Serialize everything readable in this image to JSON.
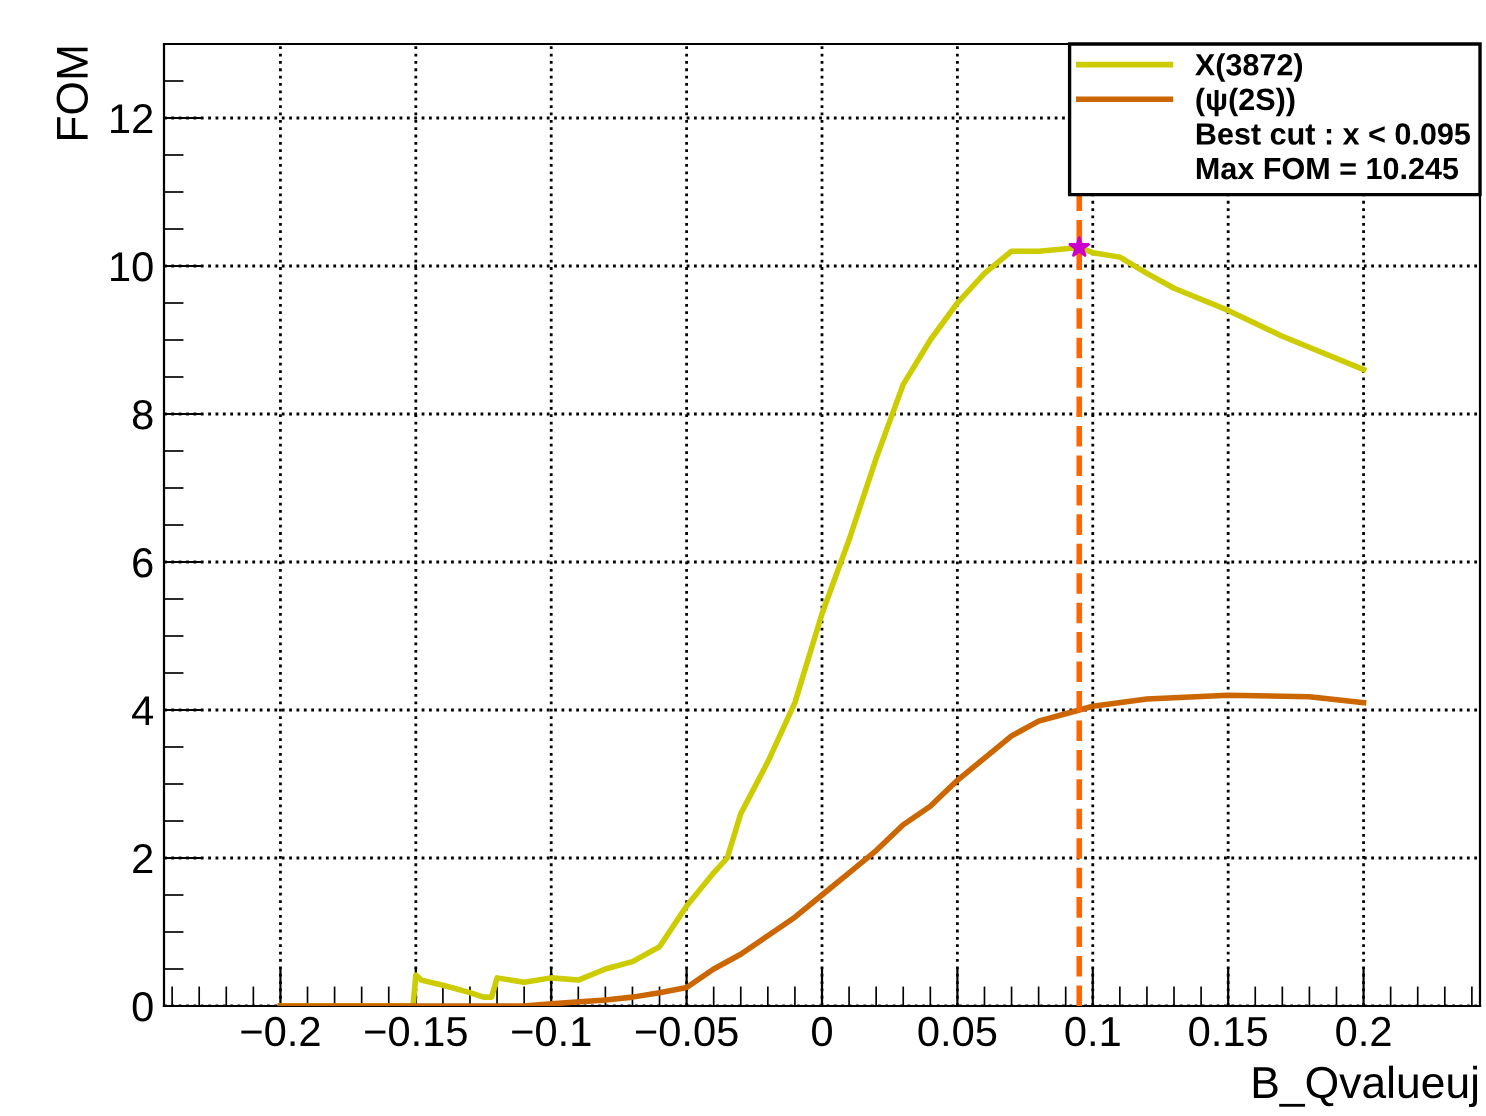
{
  "chart_data": {
    "type": "line",
    "xlabel": "B_Qvalueuj",
    "ylabel": "FOM",
    "xlim": [
      -0.243,
      0.243
    ],
    "ylim": [
      0,
      13
    ],
    "xticks": [
      {
        "value": -0.2,
        "label": "−0.2"
      },
      {
        "value": -0.15,
        "label": "−0.15"
      },
      {
        "value": -0.1,
        "label": "−0.1"
      },
      {
        "value": -0.05,
        "label": "−0.05"
      },
      0,
      0.05,
      0.1,
      0.15,
      0.2
    ],
    "yticks": [
      0,
      2,
      4,
      6,
      8,
      10,
      12
    ],
    "grid": true,
    "legend": "top right",
    "marker": "none",
    "line_style": "solid",
    "series": [
      {
        "name": "X(3872)",
        "color": "#cccc00",
        "x": [
          -0.2,
          -0.151,
          -0.15,
          -0.148,
          -0.14,
          -0.13,
          -0.125,
          -0.122,
          -0.12,
          -0.11,
          -0.1,
          -0.09,
          -0.08,
          -0.07,
          -0.06,
          -0.05,
          -0.04,
          -0.035,
          -0.03,
          -0.02,
          -0.01,
          0,
          0.01,
          0.02,
          0.03,
          0.04,
          0.05,
          0.06,
          0.07,
          0.08,
          0.095,
          0.1,
          0.11,
          0.12,
          0.13,
          0.15,
          0.17,
          0.2
        ],
        "values": [
          0,
          0,
          0.42,
          0.35,
          0.28,
          0.18,
          0.12,
          0.12,
          0.38,
          0.32,
          0.38,
          0.35,
          0.5,
          0.6,
          0.8,
          1.35,
          1.8,
          2.0,
          2.6,
          3.3,
          4.1,
          5.3,
          6.3,
          7.4,
          8.4,
          9.0,
          9.5,
          9.9,
          10.2,
          10.2,
          10.25,
          10.18,
          10.12,
          9.9,
          9.7,
          9.4,
          9.05,
          8.6
        ]
      },
      {
        "name": "(ψ(2S))",
        "color": "#cc6600",
        "x": [
          -0.2,
          -0.11,
          -0.1,
          -0.08,
          -0.07,
          -0.06,
          -0.05,
          -0.04,
          -0.03,
          -0.02,
          -0.01,
          0,
          0.01,
          0.02,
          0.03,
          0.04,
          0.05,
          0.06,
          0.07,
          0.08,
          0.09,
          0.1,
          0.12,
          0.15,
          0.18,
          0.2
        ],
        "values": [
          0,
          0,
          0.03,
          0.08,
          0.12,
          0.18,
          0.25,
          0.5,
          0.7,
          0.95,
          1.2,
          1.5,
          1.8,
          2.1,
          2.45,
          2.7,
          3.05,
          3.35,
          3.65,
          3.85,
          3.95,
          4.05,
          4.15,
          4.2,
          4.18,
          4.1
        ]
      },
      {
        "type": "scatter",
        "marker": "star",
        "color": "#cc00cc",
        "x": [
          0.095
        ],
        "values": [
          10.25
        ]
      }
    ],
    "ref_lines": [
      {
        "axis": "x",
        "value": 0.095,
        "color": "#ff6600",
        "line_style": "dashed"
      }
    ],
    "annotations": [
      "Best cut : x < 0.095",
      "Max FOM = 10.245"
    ]
  }
}
